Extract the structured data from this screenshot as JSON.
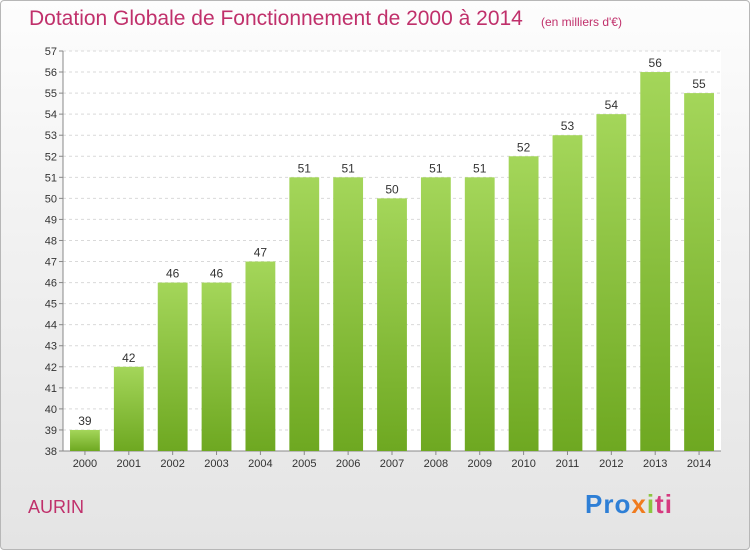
{
  "chart_data": {
    "type": "bar",
    "title": "Dotation Globale de Fonctionnement de 2000 à 2014",
    "subtitle": "(en milliers d'€)",
    "categories": [
      "2000",
      "2001",
      "2002",
      "2003",
      "2004",
      "2005",
      "2006",
      "2007",
      "2008",
      "2009",
      "2010",
      "2011",
      "2012",
      "2013",
      "2014"
    ],
    "values": [
      39,
      42,
      46,
      46,
      47,
      51,
      51,
      50,
      51,
      51,
      52,
      53,
      54,
      56,
      55
    ],
    "ylim": [
      38,
      57
    ],
    "yticks": [
      38,
      39,
      40,
      41,
      42,
      43,
      44,
      45,
      46,
      47,
      48,
      49,
      50,
      51,
      52,
      53,
      54,
      55,
      56,
      57
    ],
    "grid": true,
    "bar_color": "#8cc63f"
  },
  "commune": "AURIN",
  "logo": {
    "p1": "Pro",
    "p2": "x",
    "p3": "i",
    "p4": "ti"
  }
}
